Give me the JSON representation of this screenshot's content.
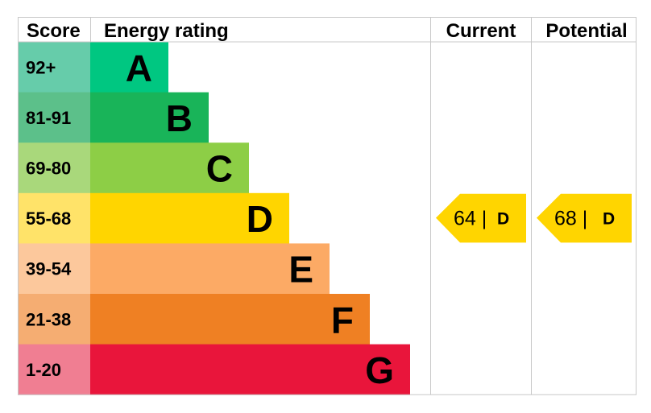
{
  "headers": {
    "score": "Score",
    "energy_rating": "Energy rating",
    "current": "Current",
    "potential": "Potential"
  },
  "chart_data": {
    "type": "bar",
    "title": "",
    "categories": [
      "A",
      "B",
      "C",
      "D",
      "E",
      "F",
      "G"
    ],
    "score_bands": [
      "92+",
      "81-91",
      "69-80",
      "55-68",
      "39-54",
      "21-38",
      "1-20"
    ],
    "band_colors": [
      "#00c781",
      "#19b459",
      "#8dce46",
      "#ffd500",
      "#fcaa65",
      "#ef8023",
      "#e9153b"
    ],
    "score_cell_colors": [
      "#66ccaa",
      "#5cc08a",
      "#a9d87b",
      "#ffe369",
      "#fcc89c",
      "#f5ad72",
      "#f07e92"
    ],
    "current": {
      "value": 64,
      "band": "D",
      "color": "#ffd500"
    },
    "potential": {
      "value": 68,
      "band": "D",
      "color": "#ffd500"
    }
  }
}
